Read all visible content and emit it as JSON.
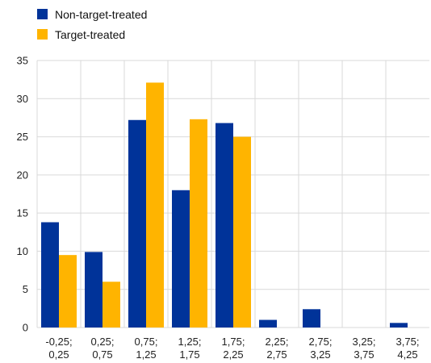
{
  "chart_data": {
    "type": "bar",
    "categories": [
      [
        "-0,25;",
        "0,25"
      ],
      [
        "0,25;",
        "0,75"
      ],
      [
        "0,75;",
        "1,25"
      ],
      [
        "1,25;",
        "1,75"
      ],
      [
        "1,75;",
        "2,25"
      ],
      [
        "2,25;",
        "2,75"
      ],
      [
        "2,75;",
        "3,25"
      ],
      [
        "3,25;",
        "3,75"
      ],
      [
        "3,75;",
        "4,25"
      ]
    ],
    "series": [
      {
        "name": "Non-target-treated",
        "color": "#003399",
        "values": [
          13.8,
          9.9,
          27.2,
          18.0,
          26.8,
          1.0,
          2.4,
          0.0,
          0.6
        ]
      },
      {
        "name": "Target-treated",
        "color": "#FFB400",
        "values": [
          9.5,
          6.0,
          32.1,
          27.3,
          25.0,
          0.0,
          0.0,
          0.0,
          0.0
        ]
      }
    ],
    "ylim": [
      0,
      35
    ],
    "yticks": [
      0,
      5,
      10,
      15,
      20,
      25,
      30,
      35
    ],
    "grid": true,
    "legend_position": "top-left"
  }
}
